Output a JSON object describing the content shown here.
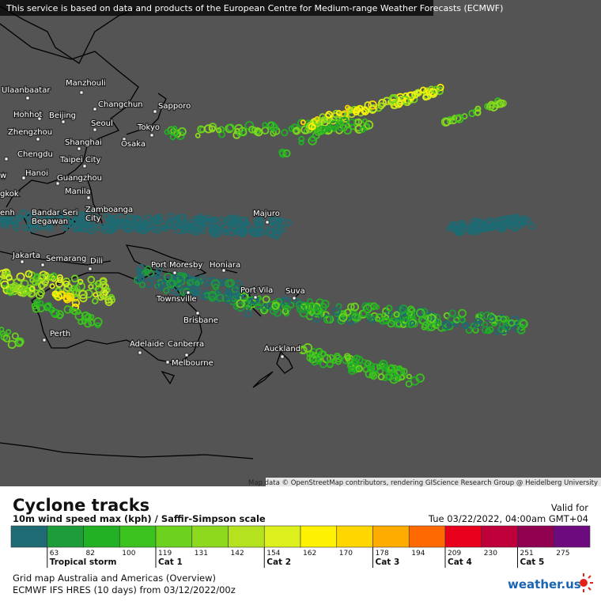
{
  "notice": "This service is based on data and products of the European Centre for Medium-range Weather Forecasts (ECMWF)",
  "cities": [
    [
      "Ulaanbaatar"
    ],
    [
      "Manzhouli"
    ],
    [
      "Changchun"
    ],
    [
      "Sapporo"
    ],
    [
      "Hohhot"
    ],
    [
      "Beijing"
    ],
    [
      "Seoul"
    ],
    [
      "Tokyo"
    ],
    [
      "Zhengzhou"
    ],
    [
      "Osaka"
    ],
    [
      "Shanghai"
    ],
    [
      "Chengdu"
    ],
    [
      "Taipei City"
    ],
    [
      "Hanoi"
    ],
    [
      "Guangzhou"
    ],
    [
      "Manila"
    ],
    [
      "Zamboanga",
      "City"
    ],
    [
      "Bandar Seri",
      "Begawan"
    ],
    [
      "Majuro"
    ],
    [
      "Jakarta"
    ],
    [
      "Semarang"
    ],
    [
      "Dili"
    ],
    [
      "Port Moresby"
    ],
    [
      "Honiara"
    ],
    [
      "Port Vila"
    ],
    [
      "Suva"
    ],
    [
      "Townsville"
    ],
    [
      "Brisbane"
    ],
    [
      "Perth"
    ],
    [
      "Adelaide"
    ],
    [
      "Canberra"
    ],
    [
      "Auckland"
    ],
    [
      "Melbourne"
    ],
    [
      "w"
    ],
    [
      "gkok"
    ],
    [
      "enh"
    ]
  ],
  "attribution": "Map data © OpenStreetMap contributors, rendering GIScience Research Group @ Heidelberg University",
  "legend": {
    "title": "Cyclone tracks",
    "subtitle": "10m wind speed max (kph) / Saffir-Simpson scale",
    "valid_label": "Valid for",
    "valid_time": "Tue 03/22/2022, 04:00am GMT+04",
    "colors": [
      "#1f6b73",
      "#1e9c3a",
      "#22b024",
      "#3cc21e",
      "#6cd21e",
      "#8ed91e",
      "#b4e21e",
      "#dcf01e",
      "#fff200",
      "#ffd700",
      "#ffac00",
      "#ff6a00",
      "#e8001c",
      "#c0003a",
      "#920050",
      "#6c0a7e"
    ],
    "ticks": [
      63,
      82,
      100,
      119,
      131,
      142,
      154,
      162,
      170,
      178,
      194,
      209,
      230,
      251,
      275
    ],
    "categories": [
      "Tropical storm",
      "Cat 1",
      "Cat 2",
      "Cat 3",
      "Cat 4",
      "Cat 5"
    ]
  },
  "footer": {
    "line1": "Grid map Australia and Americas (Overview)",
    "line2": "ECMWF IFS HRES (10 days) from 03/12/2022/00z",
    "logo": "weather.us"
  }
}
